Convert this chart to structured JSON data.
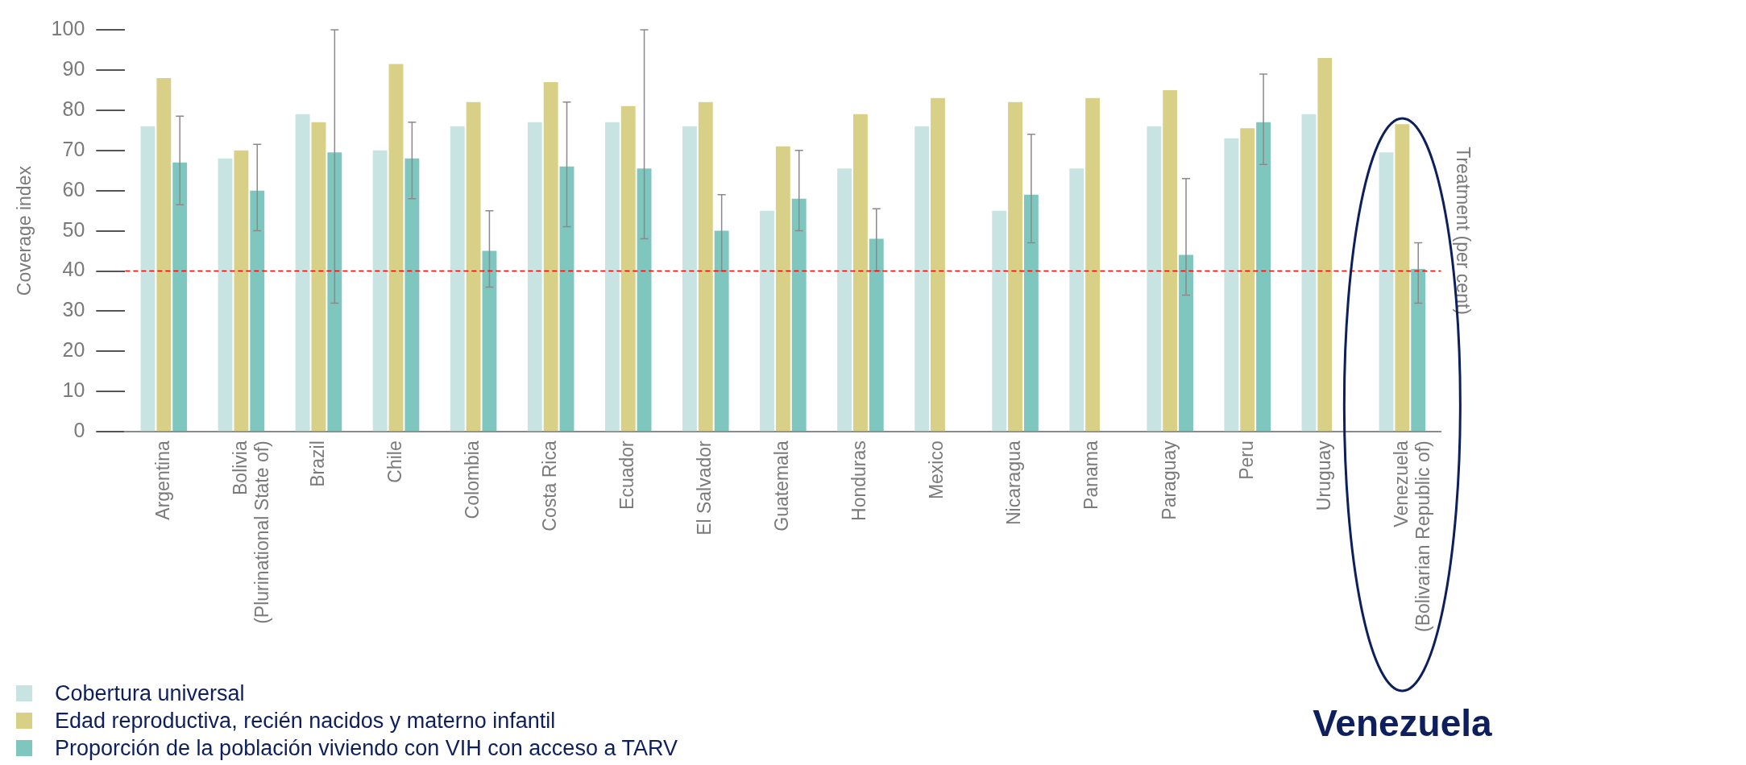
{
  "chart_data": {
    "type": "bar",
    "categories": [
      "Argentina",
      "Bolivia\n(Plurinational State of)",
      "Brazil",
      "Chile",
      "Colombia",
      "Costa Rica",
      "Ecuador",
      "El Salvador",
      "Guatemala",
      "Honduras",
      "Mexico",
      "Nicaragua",
      "Panama",
      "Paraguay",
      "Peru",
      "Uruguay",
      "Venezuela\n(Bolivarian Republic of)"
    ],
    "series": [
      {
        "name": "Cobertura universal",
        "color": "#c7e4e2",
        "values": [
          76,
          68,
          79,
          70,
          76,
          77,
          77,
          76,
          55,
          65.5,
          76,
          55,
          65.5,
          76,
          73,
          79,
          69.5
        ]
      },
      {
        "name": "Edad reproductiva, recién nacidos y materno infantil",
        "color": "#d8d086",
        "values": [
          88,
          70,
          77,
          91.5,
          82,
          87,
          81,
          82,
          71,
          79,
          83,
          82,
          83,
          85,
          75.5,
          93,
          76.5
        ]
      },
      {
        "name": "Proporción de la población viviendo con VIH con acceso a TARV",
        "color": "#7fc6bf",
        "values": [
          67,
          60,
          69.5,
          68,
          45,
          66,
          65.5,
          50,
          58,
          48,
          null,
          59,
          null,
          44,
          77,
          null,
          40.5
        ],
        "errors": [
          [
            56.5,
            78.5
          ],
          [
            50,
            71.5
          ],
          [
            32,
            100
          ],
          [
            58,
            77
          ],
          [
            36,
            55
          ],
          [
            51,
            82
          ],
          [
            48,
            100
          ],
          [
            40,
            59
          ],
          [
            50,
            70
          ],
          [
            40,
            55.5
          ],
          null,
          [
            47,
            74
          ],
          null,
          [
            34,
            63
          ],
          [
            66.5,
            89
          ],
          null,
          [
            32,
            47
          ]
        ]
      }
    ],
    "ylabel": "Coverage index",
    "y2label": "Treatment (per cent)",
    "ylim": [
      0,
      100
    ],
    "yticks": [
      0,
      10,
      20,
      30,
      40,
      50,
      60,
      70,
      80,
      90,
      100
    ],
    "ref_lines": [
      {
        "axis": "y",
        "value": 40,
        "color": "#ff0000",
        "line_style": "dashed"
      }
    ],
    "annotations": [
      "Venezuela"
    ],
    "legend": "bottom left"
  }
}
